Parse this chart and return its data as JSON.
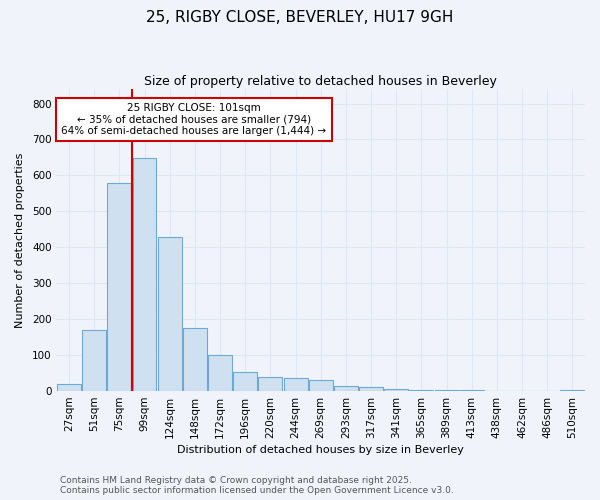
{
  "title1": "25, RIGBY CLOSE, BEVERLEY, HU17 9GH",
  "title2": "Size of property relative to detached houses in Beverley",
  "xlabel": "Distribution of detached houses by size in Beverley",
  "ylabel": "Number of detached properties",
  "categories": [
    "27sqm",
    "51sqm",
    "75sqm",
    "99sqm",
    "124sqm",
    "148sqm",
    "172sqm",
    "196sqm",
    "220sqm",
    "244sqm",
    "269sqm",
    "293sqm",
    "317sqm",
    "341sqm",
    "365sqm",
    "389sqm",
    "413sqm",
    "438sqm",
    "462sqm",
    "486sqm",
    "510sqm"
  ],
  "values": [
    20,
    170,
    580,
    648,
    430,
    175,
    100,
    52,
    40,
    35,
    30,
    13,
    10,
    5,
    4,
    3,
    2,
    1,
    0,
    0,
    3
  ],
  "bar_color": "#cfe0f0",
  "bar_edgecolor": "#6aaad4",
  "redline_index": 3,
  "annotation_line1": "25 RIGBY CLOSE: 101sqm",
  "annotation_line2": "← 35% of detached houses are smaller (794)",
  "annotation_line3": "64% of semi-detached houses are larger (1,444) →",
  "annotation_box_facecolor": "#ffffff",
  "annotation_box_edgecolor": "#cc0000",
  "ylim": [
    0,
    840
  ],
  "yticks": [
    0,
    100,
    200,
    300,
    400,
    500,
    600,
    700,
    800
  ],
  "footer_line1": "Contains HM Land Registry data © Crown copyright and database right 2025.",
  "footer_line2": "Contains public sector information licensed under the Open Government Licence v3.0.",
  "bg_color": "#f0f4fa",
  "grid_color": "#dce8f5",
  "title1_fontsize": 11,
  "title2_fontsize": 9,
  "xlabel_fontsize": 8,
  "ylabel_fontsize": 8,
  "tick_fontsize": 7.5,
  "annot_fontsize": 7.5,
  "footer_fontsize": 6.5
}
